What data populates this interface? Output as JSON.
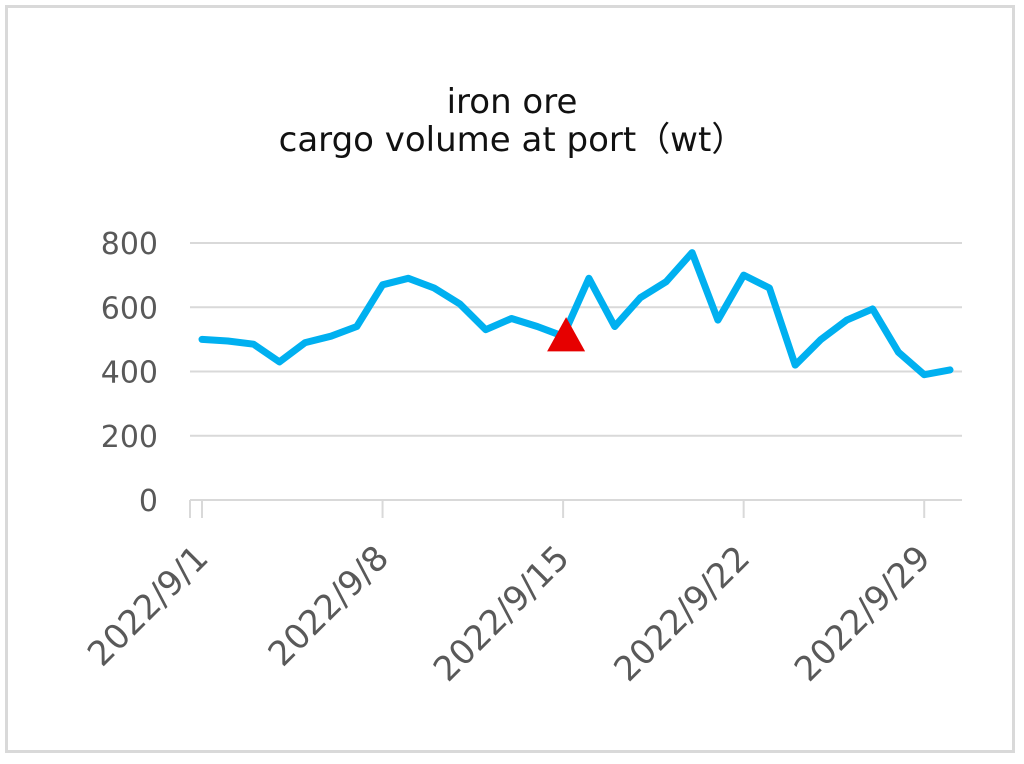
{
  "chart_data": {
    "type": "line",
    "title_line1": "iron ore",
    "title_line2": "cargo volume at port（wt）",
    "xlabel": "",
    "ylabel": "",
    "ylim": [
      0,
      800
    ],
    "y_ticks": [
      "800",
      "600",
      "400",
      "200",
      "0"
    ],
    "x_tick_labels": [
      "2022/9/1",
      "2022/9/8",
      "2022/9/15",
      "2022/9/22",
      "2022/9/29"
    ],
    "x": [
      "2022/9/1",
      "2022/9/2",
      "2022/9/3",
      "2022/9/4",
      "2022/9/5",
      "2022/9/6",
      "2022/9/7",
      "2022/9/8",
      "2022/9/9",
      "2022/9/10",
      "2022/9/11",
      "2022/9/12",
      "2022/9/13",
      "2022/9/14",
      "2022/9/15",
      "2022/9/16",
      "2022/9/17",
      "2022/9/18",
      "2022/9/19",
      "2022/9/20",
      "2022/9/21",
      "2022/9/22",
      "2022/9/23",
      "2022/9/24",
      "2022/9/25",
      "2022/9/26",
      "2022/9/27",
      "2022/9/28",
      "2022/9/29",
      "2022/9/30"
    ],
    "series": [
      {
        "values": [
          500,
          495,
          485,
          430,
          490,
          510,
          540,
          670,
          690,
          660,
          610,
          530,
          565,
          540,
          510,
          690,
          540,
          630,
          680,
          770,
          560,
          700,
          660,
          420,
          500,
          560,
          595,
          460,
          390,
          405
        ]
      }
    ],
    "marker": {
      "x": "2022/9/15",
      "y": 510,
      "shape": "triangle",
      "color": "#e60000"
    },
    "line_color": "#00b0f0",
    "grid": true,
    "legend": "none"
  }
}
